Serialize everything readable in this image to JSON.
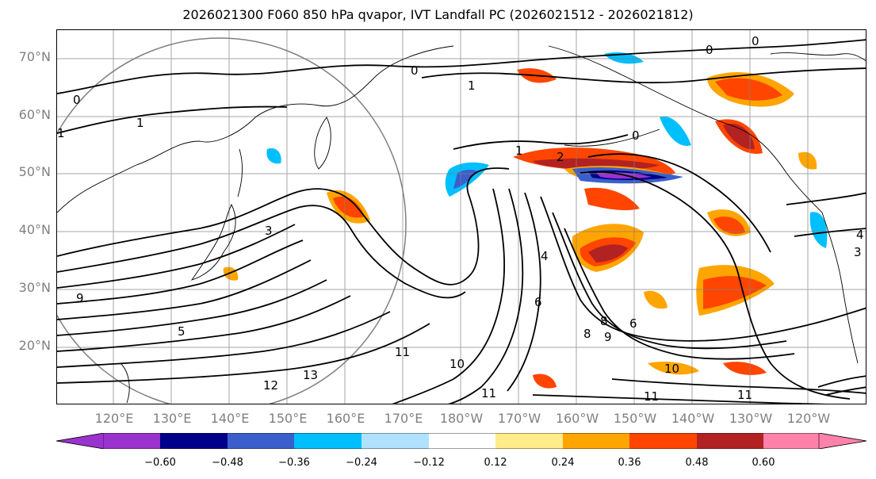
{
  "title": "2026021300 F060 850 hPa qvapor, IVT Landfall PC (2026021512 - 2026021812)",
  "lat_labels": [
    "70°N",
    "60°N",
    "50°N",
    "40°N",
    "30°N",
    "20°N"
  ],
  "lon_labels": [
    "120°E",
    "130°E",
    "140°E",
    "150°E",
    "160°E",
    "170°E",
    "180°W",
    "170°W",
    "160°W",
    "150°W",
    "140°W",
    "130°W",
    "120°W"
  ],
  "lat_range": [
    10,
    75
  ],
  "lon_range_degE": [
    110,
    250
  ],
  "colorbar": {
    "ticks": [
      "−0.60",
      "−0.48",
      "−0.36",
      "−0.24",
      "−0.12",
      "0.12",
      "0.24",
      "0.36",
      "0.48",
      "0.60"
    ],
    "colors": [
      "#9a32cd",
      "#00008b",
      "#3a5fcd",
      "#00bfff",
      "#b0e2ff",
      "#ffffff",
      "#ffec8b",
      "#ffa500",
      "#ff4500",
      "#b22222",
      "#ff82ab"
    ],
    "extend": "both"
  },
  "contour_labels": [
    "0",
    "0",
    "0",
    "1",
    "1",
    "1",
    "0",
    "0",
    "1",
    "2",
    "3",
    "4",
    "5",
    "6",
    "6",
    "8",
    "8",
    "9",
    "9",
    "10",
    "10",
    "11",
    "11",
    "11",
    "11",
    "12",
    "13",
    "3",
    "4"
  ],
  "colors": {
    "contour": "#000000",
    "grid": "#808080",
    "coast": "#000000",
    "axis_label": "#808080"
  }
}
